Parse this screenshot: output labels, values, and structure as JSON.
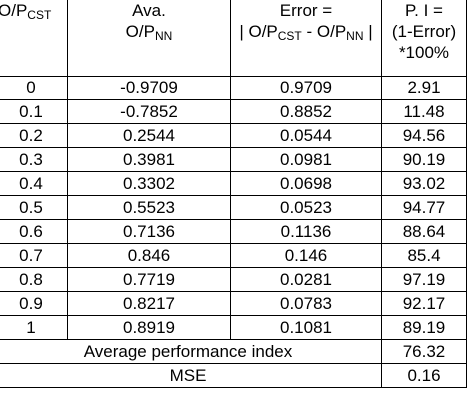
{
  "table": {
    "headers": {
      "col1_main": "O/P",
      "col1_sub": "CST",
      "col2_line1": "Ava.",
      "col2_main": "O/P",
      "col2_sub": "NN",
      "col3_line1": "Error =",
      "col3_part1": "| O/P",
      "col3_sub1": "CST",
      "col3_part2": " - O/P",
      "col3_sub2": "NN",
      "col3_part3": " |",
      "col4_line1": "P. I =",
      "col4_line2": "(1-Error)",
      "col4_line3": "*100%"
    },
    "rows": [
      {
        "op_cst": "0",
        "ava_op_nn": "-0.9709",
        "error": "0.9709",
        "pi": "2.91"
      },
      {
        "op_cst": "0.1",
        "ava_op_nn": "-0.7852",
        "error": "0.8852",
        "pi": "11.48"
      },
      {
        "op_cst": "0.2",
        "ava_op_nn": "0.2544",
        "error": "0.0544",
        "pi": "94.56"
      },
      {
        "op_cst": "0.3",
        "ava_op_nn": "0.3981",
        "error": "0.0981",
        "pi": "90.19"
      },
      {
        "op_cst": "0.4",
        "ava_op_nn": "0.3302",
        "error": "0.0698",
        "pi": "93.02"
      },
      {
        "op_cst": "0.5",
        "ava_op_nn": "0.5523",
        "error": "0.0523",
        "pi": "94.77"
      },
      {
        "op_cst": "0.6",
        "ava_op_nn": "0.7136",
        "error": "0.1136",
        "pi": "88.64"
      },
      {
        "op_cst": "0.7",
        "ava_op_nn": "0.846",
        "error": "0.146",
        "pi": "85.4"
      },
      {
        "op_cst": "0.8",
        "ava_op_nn": "0.7719",
        "error": "0.0281",
        "pi": "97.19"
      },
      {
        "op_cst": "0.9",
        "ava_op_nn": "0.8217",
        "error": "0.0783",
        "pi": "92.17"
      },
      {
        "op_cst": "1",
        "ava_op_nn": "0.8919",
        "error": "0.1081",
        "pi": "89.19"
      }
    ],
    "summary": [
      {
        "label": "Average performance index",
        "value": "76.32"
      },
      {
        "label": "MSE",
        "value": "0.16"
      }
    ]
  }
}
